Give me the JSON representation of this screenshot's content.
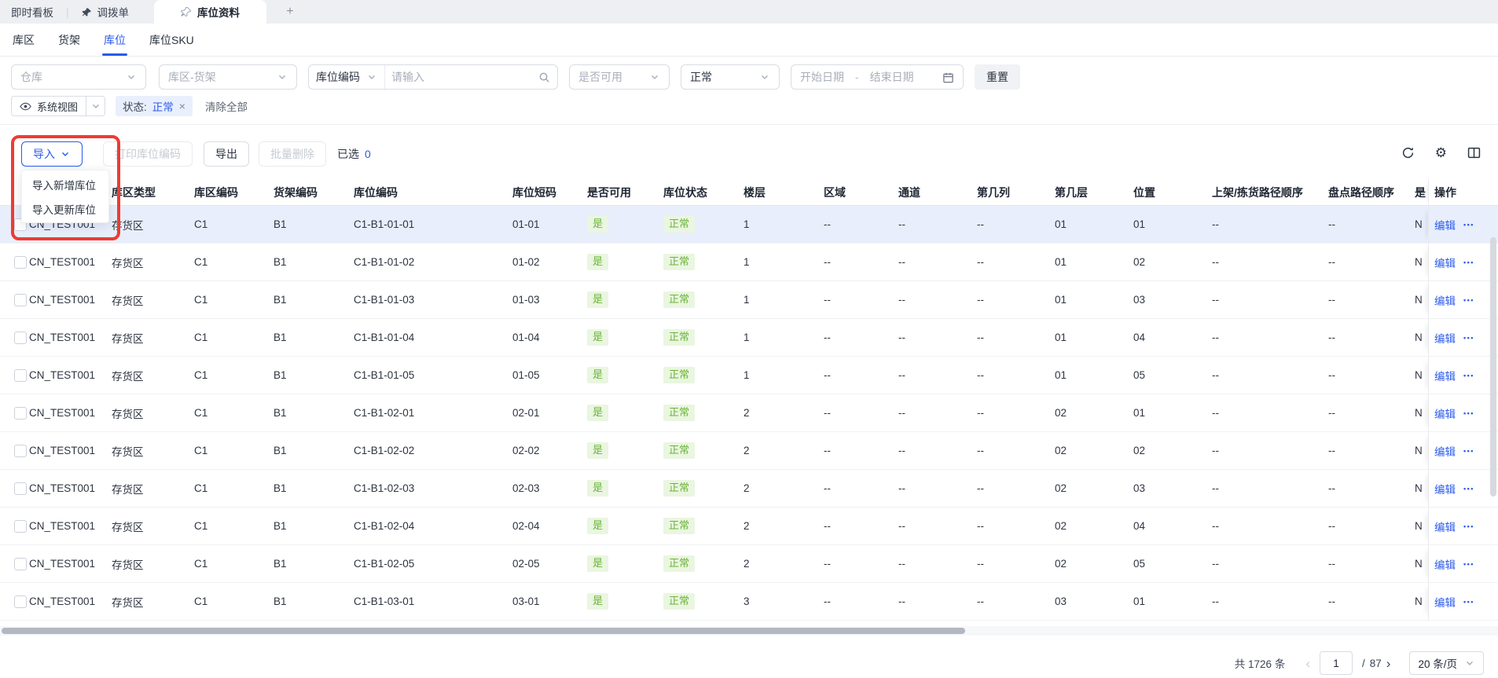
{
  "tab_bar": {
    "tabs": [
      {
        "label": "即时看板",
        "active": false
      },
      {
        "label": "调拨单",
        "active": false
      },
      {
        "label": "库位资料",
        "active": true
      }
    ],
    "divider": "|",
    "add_label": "+"
  },
  "sub_tabs": {
    "items": [
      "库区",
      "货架",
      "库位",
      "库位SKU"
    ],
    "active": "库位"
  },
  "filters": {
    "warehouse_placeholder": "仓库",
    "zone_rack_placeholder": "库区-货架",
    "code_field_label": "库位编码",
    "code_input_placeholder": "请输入",
    "available_placeholder": "是否可用",
    "status_value": "正常",
    "date_start_placeholder": "开始日期",
    "date_separator": "-",
    "date_end_placeholder": "结束日期",
    "reset_label": "重置"
  },
  "view_bar": {
    "view_label": "系统视图",
    "filter_chip": {
      "label": "状态:",
      "value": "正常",
      "close": "×"
    },
    "clear_all_label": "清除全部"
  },
  "toolbar": {
    "import_label": "导入",
    "import_menu": [
      "导入新增库位",
      "导入更新库位"
    ],
    "print_label": "打印库位编码",
    "export_label": "导出",
    "batch_delete_label": "批量删除",
    "selected_label": "已选",
    "selected_count": "0"
  },
  "table": {
    "columns": [
      "",
      "库区类型",
      "库区编码",
      "货架编码",
      "库位编码",
      "库位短码",
      "是否可用",
      "库位状态",
      "楼层",
      "区域",
      "通道",
      "第几列",
      "第几层",
      "位置",
      "上架/拣货路径顺序",
      "盘点路径顺序",
      "是",
      "操作"
    ],
    "row_keys": [
      "warehouse",
      "zone_type",
      "zone_code",
      "rack_code",
      "location_code",
      "short_code",
      "available",
      "status",
      "floor",
      "area",
      "aisle",
      "column_no",
      "layer_no",
      "position",
      "putaway_pick_order",
      "count_order",
      "flag"
    ],
    "edit_label": "编辑",
    "more_label": "•••",
    "rows": [
      {
        "warehouse": "CN_TEST001",
        "zone_type": "存货区",
        "zone_code": "C1",
        "rack_code": "B1",
        "location_code": "C1-B1-01-01",
        "short_code": "01-01",
        "available": "是",
        "status": "正常",
        "floor": "1",
        "area": "--",
        "aisle": "--",
        "column_no": "--",
        "layer_no": "01",
        "position": "01",
        "putaway_pick_order": "--",
        "count_order": "--",
        "flag": "N",
        "highlighted": true
      },
      {
        "warehouse": "CN_TEST001",
        "zone_type": "存货区",
        "zone_code": "C1",
        "rack_code": "B1",
        "location_code": "C1-B1-01-02",
        "short_code": "01-02",
        "available": "是",
        "status": "正常",
        "floor": "1",
        "area": "--",
        "aisle": "--",
        "column_no": "--",
        "layer_no": "01",
        "position": "02",
        "putaway_pick_order": "--",
        "count_order": "--",
        "flag": "N",
        "highlighted": false
      },
      {
        "warehouse": "CN_TEST001",
        "zone_type": "存货区",
        "zone_code": "C1",
        "rack_code": "B1",
        "location_code": "C1-B1-01-03",
        "short_code": "01-03",
        "available": "是",
        "status": "正常",
        "floor": "1",
        "area": "--",
        "aisle": "--",
        "column_no": "--",
        "layer_no": "01",
        "position": "03",
        "putaway_pick_order": "--",
        "count_order": "--",
        "flag": "N",
        "highlighted": false
      },
      {
        "warehouse": "CN_TEST001",
        "zone_type": "存货区",
        "zone_code": "C1",
        "rack_code": "B1",
        "location_code": "C1-B1-01-04",
        "short_code": "01-04",
        "available": "是",
        "status": "正常",
        "floor": "1",
        "area": "--",
        "aisle": "--",
        "column_no": "--",
        "layer_no": "01",
        "position": "04",
        "putaway_pick_order": "--",
        "count_order": "--",
        "flag": "N",
        "highlighted": false
      },
      {
        "warehouse": "CN_TEST001",
        "zone_type": "存货区",
        "zone_code": "C1",
        "rack_code": "B1",
        "location_code": "C1-B1-01-05",
        "short_code": "01-05",
        "available": "是",
        "status": "正常",
        "floor": "1",
        "area": "--",
        "aisle": "--",
        "column_no": "--",
        "layer_no": "01",
        "position": "05",
        "putaway_pick_order": "--",
        "count_order": "--",
        "flag": "N",
        "highlighted": false
      },
      {
        "warehouse": "CN_TEST001",
        "zone_type": "存货区",
        "zone_code": "C1",
        "rack_code": "B1",
        "location_code": "C1-B1-02-01",
        "short_code": "02-01",
        "available": "是",
        "status": "正常",
        "floor": "2",
        "area": "--",
        "aisle": "--",
        "column_no": "--",
        "layer_no": "02",
        "position": "01",
        "putaway_pick_order": "--",
        "count_order": "--",
        "flag": "N",
        "highlighted": false
      },
      {
        "warehouse": "CN_TEST001",
        "zone_type": "存货区",
        "zone_code": "C1",
        "rack_code": "B1",
        "location_code": "C1-B1-02-02",
        "short_code": "02-02",
        "available": "是",
        "status": "正常",
        "floor": "2",
        "area": "--",
        "aisle": "--",
        "column_no": "--",
        "layer_no": "02",
        "position": "02",
        "putaway_pick_order": "--",
        "count_order": "--",
        "flag": "N",
        "highlighted": false
      },
      {
        "warehouse": "CN_TEST001",
        "zone_type": "存货区",
        "zone_code": "C1",
        "rack_code": "B1",
        "location_code": "C1-B1-02-03",
        "short_code": "02-03",
        "available": "是",
        "status": "正常",
        "floor": "2",
        "area": "--",
        "aisle": "--",
        "column_no": "--",
        "layer_no": "02",
        "position": "03",
        "putaway_pick_order": "--",
        "count_order": "--",
        "flag": "N",
        "highlighted": false
      },
      {
        "warehouse": "CN_TEST001",
        "zone_type": "存货区",
        "zone_code": "C1",
        "rack_code": "B1",
        "location_code": "C1-B1-02-04",
        "short_code": "02-04",
        "available": "是",
        "status": "正常",
        "floor": "2",
        "area": "--",
        "aisle": "--",
        "column_no": "--",
        "layer_no": "02",
        "position": "04",
        "putaway_pick_order": "--",
        "count_order": "--",
        "flag": "N",
        "highlighted": false
      },
      {
        "warehouse": "CN_TEST001",
        "zone_type": "存货区",
        "zone_code": "C1",
        "rack_code": "B1",
        "location_code": "C1-B1-02-05",
        "short_code": "02-05",
        "available": "是",
        "status": "正常",
        "floor": "2",
        "area": "--",
        "aisle": "--",
        "column_no": "--",
        "layer_no": "02",
        "position": "05",
        "putaway_pick_order": "--",
        "count_order": "--",
        "flag": "N",
        "highlighted": false
      },
      {
        "warehouse": "CN_TEST001",
        "zone_type": "存货区",
        "zone_code": "C1",
        "rack_code": "B1",
        "location_code": "C1-B1-03-01",
        "short_code": "03-01",
        "available": "是",
        "status": "正常",
        "floor": "3",
        "area": "--",
        "aisle": "--",
        "column_no": "--",
        "layer_no": "03",
        "position": "01",
        "putaway_pick_order": "--",
        "count_order": "--",
        "flag": "N",
        "highlighted": false
      }
    ]
  },
  "pagination": {
    "total_text": "共 1726 条",
    "prev": "‹",
    "page": "1",
    "separator": "/",
    "total_pages": "87",
    "next": "›",
    "page_size": "20 条/页"
  },
  "icons": {
    "gear": "⚙"
  },
  "colors": {
    "accent_blue": "#2b5aeb",
    "badge_green_bg": "#eaf6e0",
    "badge_green_text": "#6ab438",
    "annotation_red": "#ee3b33",
    "row_highlight": "#e8eefb"
  }
}
